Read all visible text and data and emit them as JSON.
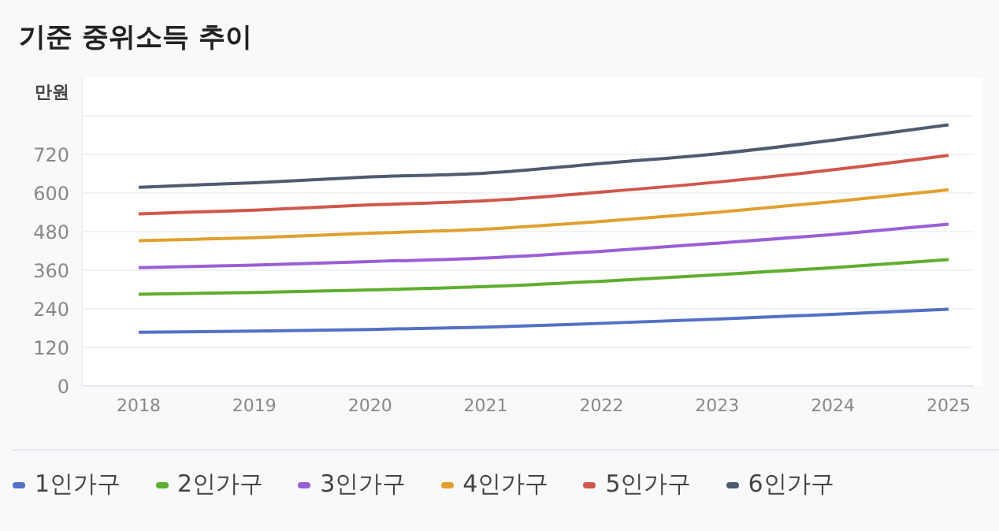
{
  "chart_data": {
    "type": "line",
    "title": "기준 중위소득 추이",
    "ylabel": "만원",
    "categories": [
      "2018",
      "2019",
      "2020",
      "2021",
      "2022",
      "2023",
      "2024",
      "2025"
    ],
    "series": [
      {
        "name": "1인가구",
        "color": "#5470c6",
        "values": [
          167,
          171,
          176,
          183,
          195,
          208,
          223,
          239
        ]
      },
      {
        "name": "2인가구",
        "color": "#5fae2e",
        "values": [
          285,
          291,
          299,
          309,
          326,
          346,
          368,
          393
        ]
      },
      {
        "name": "3인가구",
        "color": "#9a5fd6",
        "values": [
          368,
          376,
          387,
          398,
          419,
          444,
          471,
          503
        ]
      },
      {
        "name": "4인가구",
        "color": "#e0a030",
        "values": [
          452,
          461,
          475,
          488,
          512,
          540,
          573,
          610
        ]
      },
      {
        "name": "5인가구",
        "color": "#d0574c",
        "values": [
          535,
          547,
          563,
          576,
          603,
          634,
          672,
          717
        ]
      },
      {
        "name": "6인가구",
        "color": "#4f5b70",
        "values": [
          618,
          632,
          650,
          662,
          692,
          722,
          764,
          812
        ]
      }
    ],
    "ylim": [
      0,
      960
    ],
    "yticks": [
      0,
      120,
      240,
      360,
      480,
      600,
      720,
      {
        "value": 840,
        "label": null
      }
    ],
    "grid": "y",
    "legend": "bottom left",
    "marker": "none",
    "line_style": "solid"
  }
}
